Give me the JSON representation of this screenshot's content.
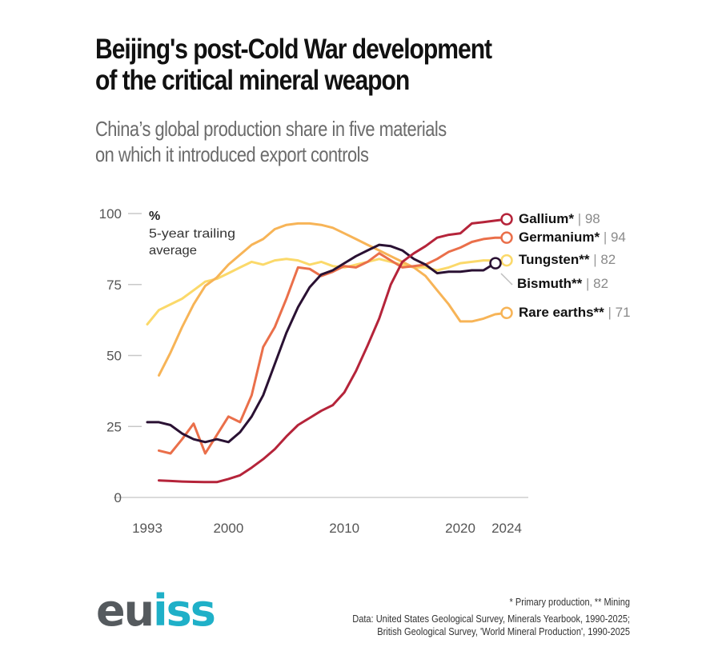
{
  "header": {
    "title_line1": "Beijing's post-Cold War development",
    "title_line2": "of the critical mineral weapon",
    "subtitle_line1": "China’s global production share in five materials",
    "subtitle_line2": "on which it introduced export controls"
  },
  "footer": {
    "note": "* Primary production, ** Mining",
    "source_line1": "Data: United States Geological Survey, Minerals Yearbook, 1990-2025;",
    "source_line2": "British Geological Survey, 'World Mineral Production', 1990-2025",
    "logo_gray": "eu",
    "logo_color": "iss"
  },
  "chart_data": {
    "type": "line",
    "title": "Beijing's post-Cold War development of the critical mineral weapon",
    "subtitle": "China’s global production share in five materials on which it introduced export controls",
    "ylabel": "%",
    "ylabel_note_line1": "5-year trailing",
    "ylabel_note_line2": "average",
    "xlabel": "",
    "ylim": [
      0,
      100
    ],
    "xlim": [
      1993,
      2024
    ],
    "yticks": [
      0,
      25,
      50,
      75,
      100
    ],
    "xticks": [
      1993,
      2000,
      2010,
      2020,
      2024
    ],
    "grid": false,
    "legend": "direct-labels-right",
    "series": [
      {
        "name": "Tungsten**",
        "label_value": "82",
        "color": "#fbd96a",
        "x": [
          1993,
          1994,
          1995,
          1996,
          1997,
          1998,
          1999,
          2000,
          2001,
          2002,
          2003,
          2004,
          2005,
          2006,
          2007,
          2008,
          2009,
          2010,
          2011,
          2012,
          2013,
          2014,
          2015,
          2016,
          2017,
          2018,
          2019,
          2020,
          2021,
          2022,
          2023,
          2024
        ],
        "values": [
          61,
          66,
          68,
          70,
          73,
          76,
          77,
          79,
          81,
          83,
          82,
          83.5,
          84,
          83.5,
          82,
          83,
          81.5,
          81,
          82,
          83,
          84,
          83,
          82,
          81,
          81,
          80,
          81,
          82.5,
          83,
          83.5,
          83.5,
          83.5
        ]
      },
      {
        "name": "Rare earths**",
        "label_value": "71",
        "color": "#f7b457",
        "x": [
          1994,
          1995,
          1996,
          1997,
          1998,
          1999,
          2000,
          2001,
          2002,
          2003,
          2004,
          2005,
          2006,
          2007,
          2008,
          2009,
          2010,
          2011,
          2012,
          2013,
          2014,
          2015,
          2016,
          2017,
          2018,
          2019,
          2020,
          2021,
          2022,
          2023,
          2024
        ],
        "values": [
          43,
          51,
          60,
          68,
          74.5,
          77.5,
          82,
          85.5,
          89,
          91,
          94.5,
          96,
          96.5,
          96.5,
          96,
          95,
          93,
          91,
          89,
          87,
          85,
          83,
          81,
          78,
          73,
          68,
          62,
          62,
          63,
          64.5,
          65
        ]
      },
      {
        "name": "Germanium*",
        "label_value": "94",
        "color": "#ea6f4a",
        "x": [
          1994,
          1995,
          1996,
          1997,
          1998,
          1999,
          2000,
          2001,
          2002,
          2003,
          2004,
          2005,
          2006,
          2007,
          2008,
          2009,
          2010,
          2011,
          2012,
          2013,
          2014,
          2015,
          2016,
          2017,
          2018,
          2019,
          2020,
          2021,
          2022,
          2023,
          2024
        ],
        "values": [
          16.5,
          15.5,
          20.5,
          26,
          15.5,
          22,
          28.5,
          26.5,
          36,
          53,
          60,
          70,
          81,
          80.5,
          78,
          79.5,
          81.5,
          81,
          83,
          86,
          83.5,
          81,
          81.5,
          82,
          84,
          86.5,
          88,
          90,
          91,
          91.5,
          91.5
        ]
      },
      {
        "name": "Bismuth**",
        "label_value": "82",
        "color": "#2a1133",
        "x": [
          1993,
          1994,
          1995,
          1996,
          1997,
          1998,
          1999,
          2000,
          2001,
          2002,
          2003,
          2004,
          2005,
          2006,
          2007,
          2008,
          2009,
          2010,
          2011,
          2012,
          2013,
          2014,
          2015,
          2016,
          2017,
          2018,
          2019,
          2020,
          2021,
          2022,
          2023
        ],
        "values": [
          26.5,
          26.5,
          25.5,
          22.5,
          20.5,
          19.5,
          20.5,
          19.5,
          23,
          28.5,
          36,
          47,
          58,
          67,
          74,
          78.5,
          80,
          82.5,
          85,
          87,
          89,
          88.5,
          87,
          84,
          82,
          79,
          79.5,
          79.5,
          80,
          80,
          82.5
        ]
      },
      {
        "name": "Gallium*",
        "label_value": "98",
        "color": "#b5243a",
        "x": [
          1994,
          1995,
          1996,
          1997,
          1998,
          1999,
          2000,
          2001,
          2002,
          2003,
          2004,
          2005,
          2006,
          2007,
          2008,
          2009,
          2010,
          2011,
          2012,
          2013,
          2014,
          2015,
          2016,
          2017,
          2018,
          2019,
          2020,
          2021,
          2022,
          2023,
          2024
        ],
        "values": [
          6,
          5.8,
          5.6,
          5.5,
          5.4,
          5.4,
          6.5,
          7.8,
          10.5,
          13.5,
          17,
          21.5,
          25.5,
          28,
          30.5,
          32.5,
          37,
          44.5,
          53.5,
          63,
          75,
          83,
          86,
          88.5,
          91.5,
          92.5,
          93,
          96.5,
          97,
          97.5,
          98
        ]
      }
    ]
  }
}
